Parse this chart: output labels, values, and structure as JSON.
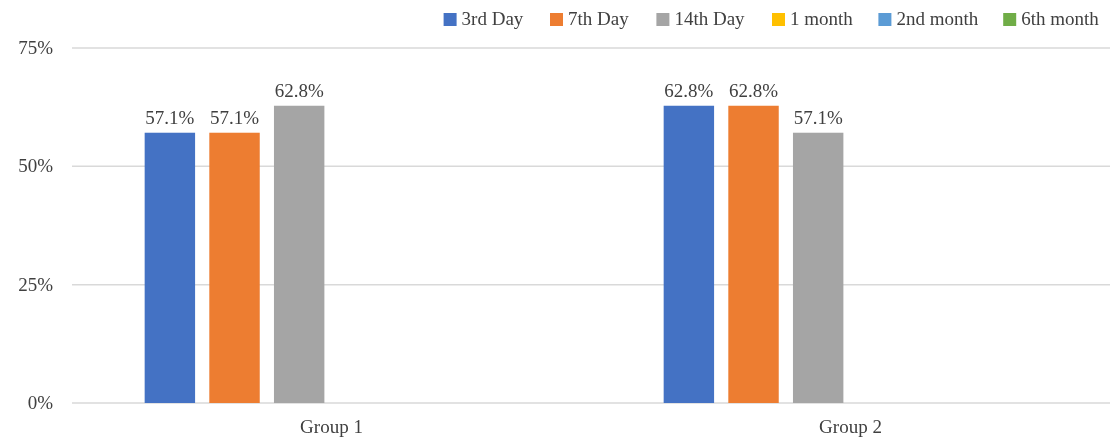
{
  "chart_data": {
    "type": "bar",
    "categories": [
      "Group 1",
      "Group 2"
    ],
    "series": [
      {
        "name": "3rd Day",
        "color": "#4472c4",
        "values": [
          57.1,
          62.8
        ],
        "value_labels": [
          "57.1%",
          "62.8%"
        ]
      },
      {
        "name": "7th Day",
        "color": "#ed7d31",
        "values": [
          57.1,
          62.8
        ],
        "value_labels": [
          "57.1%",
          "62.8%"
        ]
      },
      {
        "name": "14th Day",
        "color": "#a5a5a5",
        "values": [
          62.8,
          57.1
        ],
        "value_labels": [
          "62.8%",
          "57.1%"
        ]
      },
      {
        "name": "1 month",
        "color": "#ffc000",
        "values": [
          null,
          null
        ]
      },
      {
        "name": "2nd month",
        "color": "#5b9bd5",
        "values": [
          null,
          null
        ]
      },
      {
        "name": "6th month",
        "color": "#70ad47",
        "values": [
          null,
          null
        ]
      }
    ],
    "ylim": [
      0,
      75
    ],
    "yticks": [
      {
        "value": 0,
        "label": "0%"
      },
      {
        "value": 25,
        "label": "25%"
      },
      {
        "value": 50,
        "label": "50%"
      },
      {
        "value": 75,
        "label": "75%"
      }
    ],
    "grid": "y",
    "legend": "top right"
  }
}
